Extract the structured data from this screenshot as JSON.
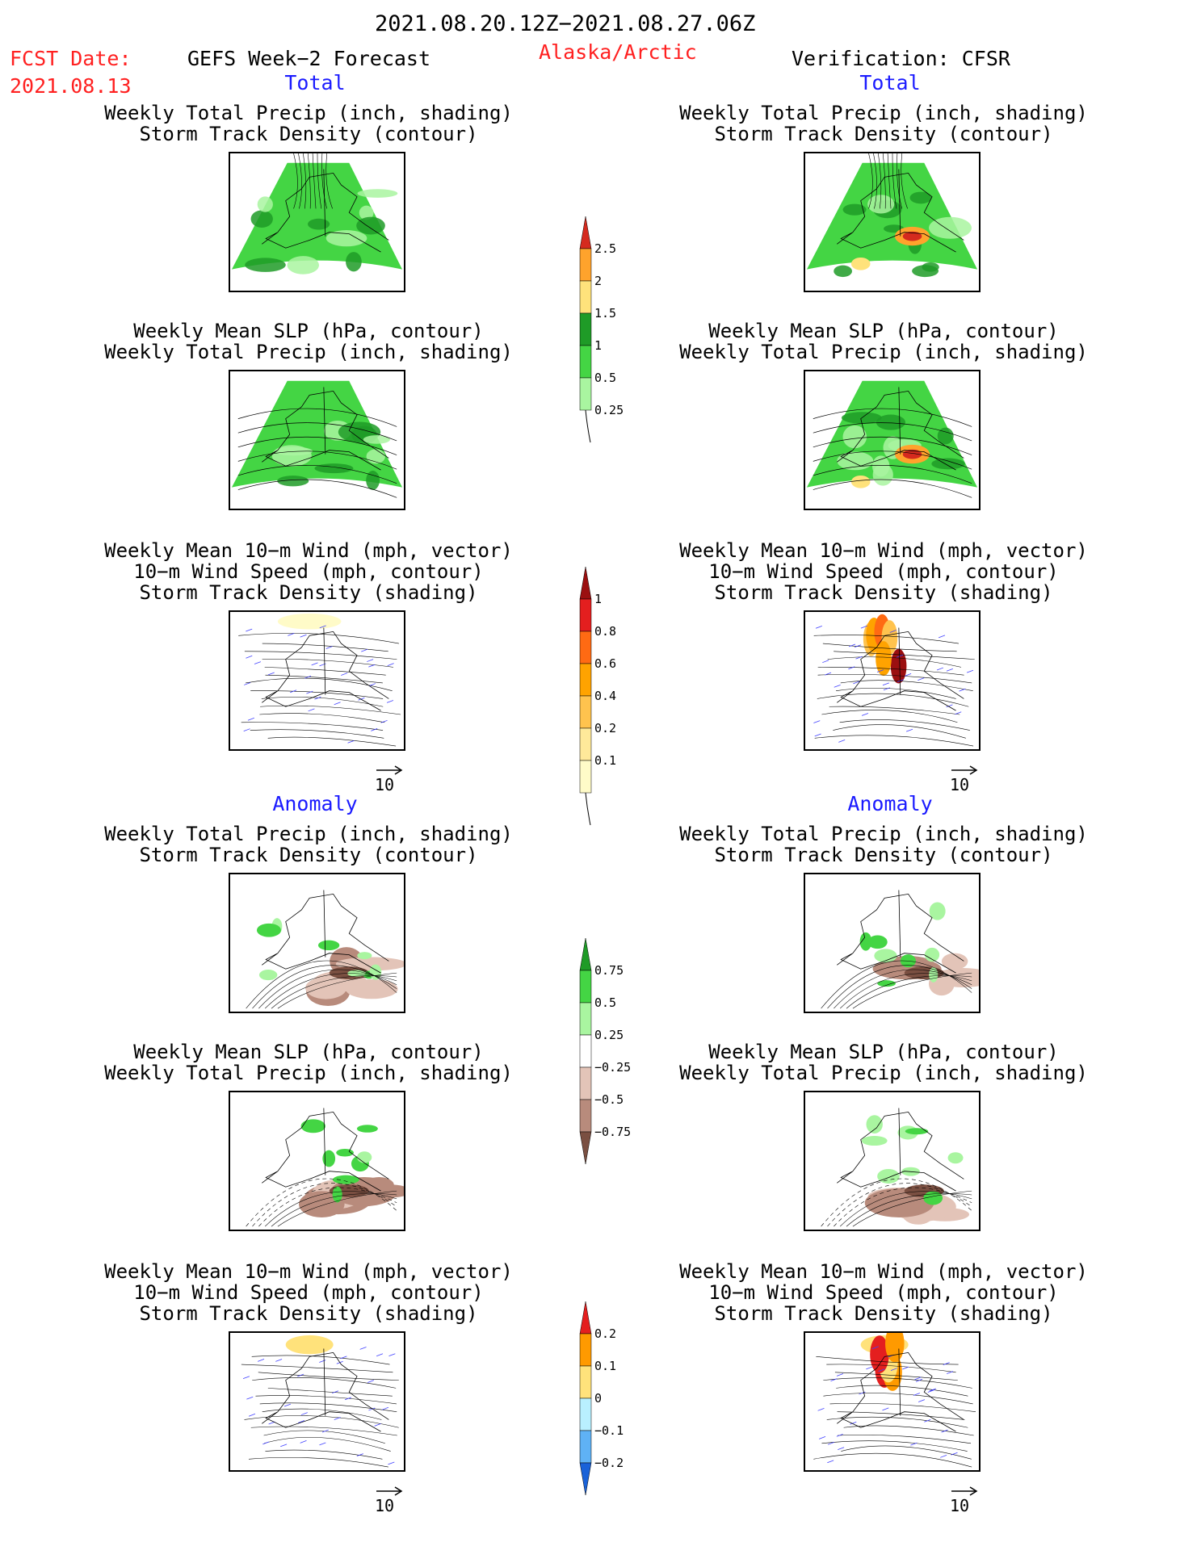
{
  "header": {
    "period": "2021.08.20.12Z−2021.08.27.06Z",
    "fcst_label": "FCST Date:",
    "fcst_date": "2021.08.13",
    "forecast_title": "GEFS Week−2 Forecast",
    "region": "Alaska/Arctic",
    "verification": "Verification: CFSR"
  },
  "sections": {
    "total_left": "Total",
    "total_right": "Total",
    "anom_left": "Anomaly",
    "anom_right": "Anomaly"
  },
  "captions": {
    "precip_l1": "Weekly Total Precip (inch, shading)",
    "precip_l2": "Storm Track Density (contour)",
    "slp_l1": "Weekly Mean SLP (hPa, contour)",
    "slp_l2": "Weekly Total Precip (inch, shading)",
    "wind_l1": "Weekly Mean 10−m Wind (mph, vector)",
    "wind_l2": "10−m Wind Speed (mph, contour)",
    "wind_l3": "Storm Track Density (shading)"
  },
  "vector_reference": "10",
  "colorbars": {
    "precip_total": {
      "labels": [
        "2.5",
        "2",
        "1.5",
        "1",
        "0.5",
        "0.25"
      ],
      "colors": [
        "#d52a1e",
        "#ffa32c",
        "#ffe27b",
        "#1f9b27",
        "#44d544",
        "#a9f5a0"
      ]
    },
    "storm_total": {
      "labels": [
        "1",
        "0.8",
        "0.6",
        "0.4",
        "0.2",
        "0.1"
      ],
      "colors": [
        "#9b0f10",
        "#e41f1f",
        "#ff6a13",
        "#ffa300",
        "#ffc34e",
        "#ffe99a",
        "#fffbc8"
      ]
    },
    "precip_anom": {
      "labels": [
        "0.75",
        "0.5",
        "0.25",
        "−0.25",
        "−0.5",
        "−0.75"
      ],
      "colors": [
        "#1f9b27",
        "#44d544",
        "#a9f5a0",
        "#ffffff",
        "#e3c4b8",
        "#b88b7c",
        "#7a4f41"
      ]
    },
    "storm_anom": {
      "labels": [
        "0.2",
        "0.1",
        "0",
        "−0.1",
        "−0.2"
      ],
      "colors": [
        "#e41f1f",
        "#ff9a00",
        "#ffe27b",
        "#b9f0ff",
        "#5fb2f5",
        "#1a62d8"
      ]
    }
  }
}
